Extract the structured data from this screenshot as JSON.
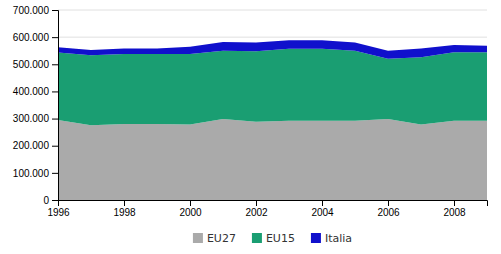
{
  "chart_data": {
    "type": "area",
    "stacked": true,
    "x": [
      1996,
      1997,
      1998,
      1999,
      2000,
      2001,
      2002,
      2003,
      2004,
      2005,
      2006,
      2007,
      2008,
      2009
    ],
    "series": [
      {
        "name": "EU27",
        "color": "#aaaaaa",
        "values": [
          295000,
          275000,
          280000,
          280000,
          278000,
          298000,
          288000,
          292000,
          292000,
          292000,
          298000,
          278000,
          292000,
          292000
        ]
      },
      {
        "name": "EU15",
        "color": "#1a9e72",
        "values": [
          248000,
          258000,
          258000,
          258000,
          260000,
          252000,
          260000,
          265000,
          265000,
          258000,
          222000,
          248000,
          252000,
          252000
        ]
      },
      {
        "name": "Italia",
        "color": "#1010cc",
        "values": [
          20000,
          20000,
          20000,
          20000,
          27000,
          32000,
          32000,
          32000,
          32000,
          30000,
          30000,
          32000,
          27000,
          24000
        ]
      }
    ],
    "xlim": [
      1996,
      2009
    ],
    "xticks": [
      1996,
      1998,
      2000,
      2002,
      2004,
      2006,
      2008
    ],
    "ylim": [
      0,
      700000
    ],
    "yticks": [
      0,
      {
        "value": 100000,
        "label": "100.000"
      },
      {
        "value": 200000,
        "label": "200.000"
      },
      {
        "value": 300000,
        "label": "300.000"
      },
      {
        "value": 400000,
        "label": "400.000"
      },
      {
        "value": 500000,
        "label": "500.000"
      },
      {
        "value": 600000,
        "label": "600.000"
      },
      {
        "value": 700000,
        "label": "700.000"
      }
    ],
    "grid": true,
    "legend": "bottom"
  }
}
